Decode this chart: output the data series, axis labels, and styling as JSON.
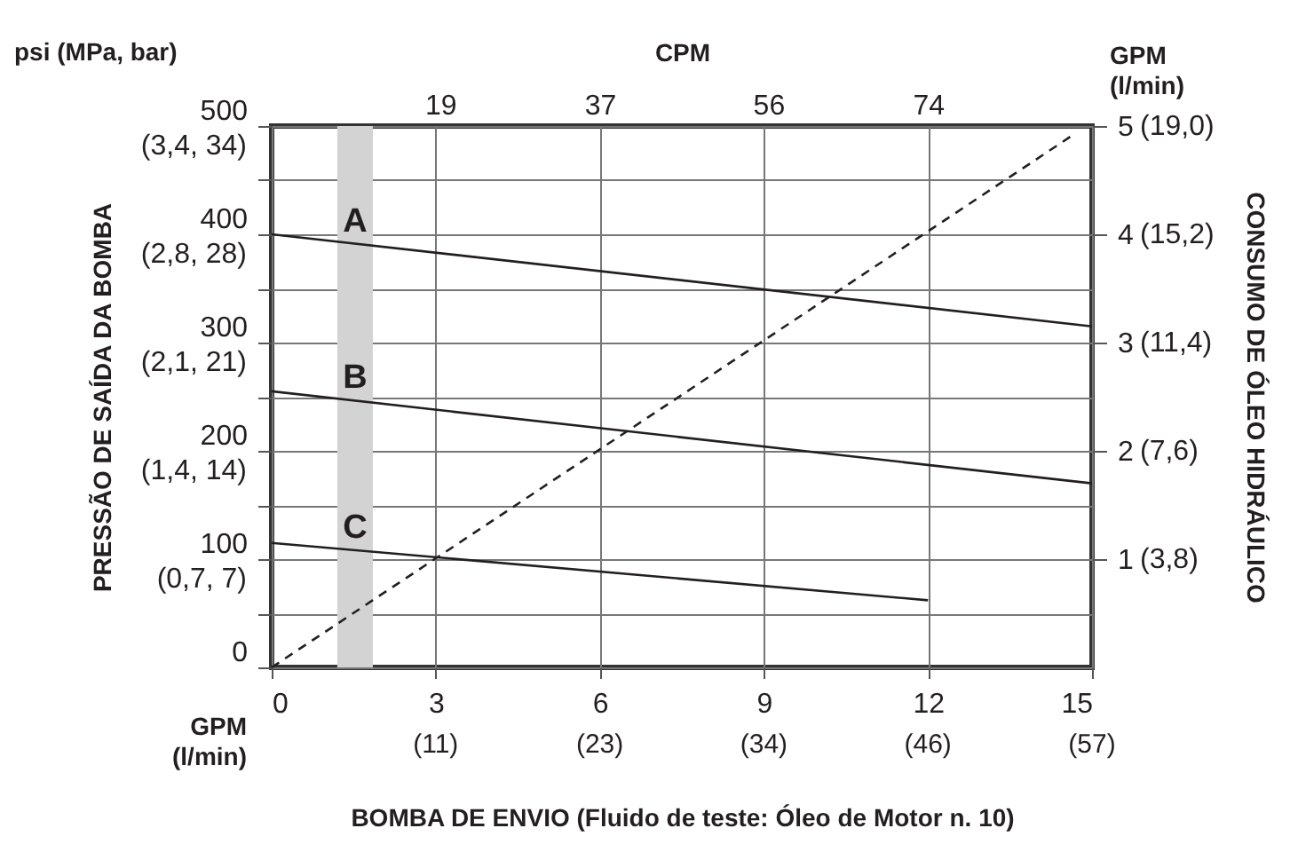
{
  "chart_data": {
    "type": "line",
    "xlabel": "BOMBA DE ENVIO (Fluido de teste: Óleo de Motor n. 10)",
    "ylabel": "PRESSÃO DE SAÍDA DA BOMBA",
    "y2label": "CONSUMO DE ÓLEO HIDRÁULICO",
    "x2label": "CPM",
    "annotations": [
      "psi (MPa, bar)",
      "GPM (l/min)",
      "GPM (l/min)",
      "(11)",
      "(23)",
      "(34)",
      "(46)",
      "(57)",
      "(0,7, 7)",
      "(1,4, 14)",
      "(2,1, 21)",
      "(2,8, 28)",
      "(3,4, 34)",
      "(3,8)",
      "(7,6)",
      "(11,4)",
      "(15,2)",
      "(19,0)"
    ],
    "xlim": [
      0,
      15
    ],
    "xticks": [
      0,
      3,
      6,
      9,
      12,
      15
    ],
    "x2lim": [
      0,
      92.5
    ],
    "x2ticks": [
      19,
      37,
      56,
      74
    ],
    "ylim": [
      0,
      500
    ],
    "yticks": [
      0,
      {
        "value": 50,
        "label": null
      },
      100,
      {
        "value": 150,
        "label": null
      },
      200,
      {
        "value": 250,
        "label": null
      },
      300,
      {
        "value": 350,
        "label": null
      },
      400,
      {
        "value": 450,
        "label": null
      },
      500
    ],
    "y2lim": [
      0,
      5
    ],
    "y2ticks": [
      1,
      2,
      3,
      4,
      5
    ],
    "grid": true,
    "series": [
      {
        "name": "A",
        "color": "#231f20",
        "x": [
          0,
          15
        ],
        "values": [
          400,
          315
        ]
      },
      {
        "name": "B",
        "color": "#231f20",
        "x": [
          0,
          15
        ],
        "values": [
          255,
          170
        ]
      },
      {
        "name": "C",
        "color": "#231f20",
        "x": [
          0,
          12
        ],
        "values": [
          115,
          62
        ]
      },
      {
        "color": "#231f20",
        "x": [
          0,
          14.6
        ],
        "values": [
          0,
          4.9
        ],
        "axis": "y2",
        "line_style": "dashed"
      }
    ],
    "bands": [
      {
        "axis": "x",
        "from": 1.2,
        "to": 1.85,
        "color": "#d3d3d3"
      }
    ]
  }
}
